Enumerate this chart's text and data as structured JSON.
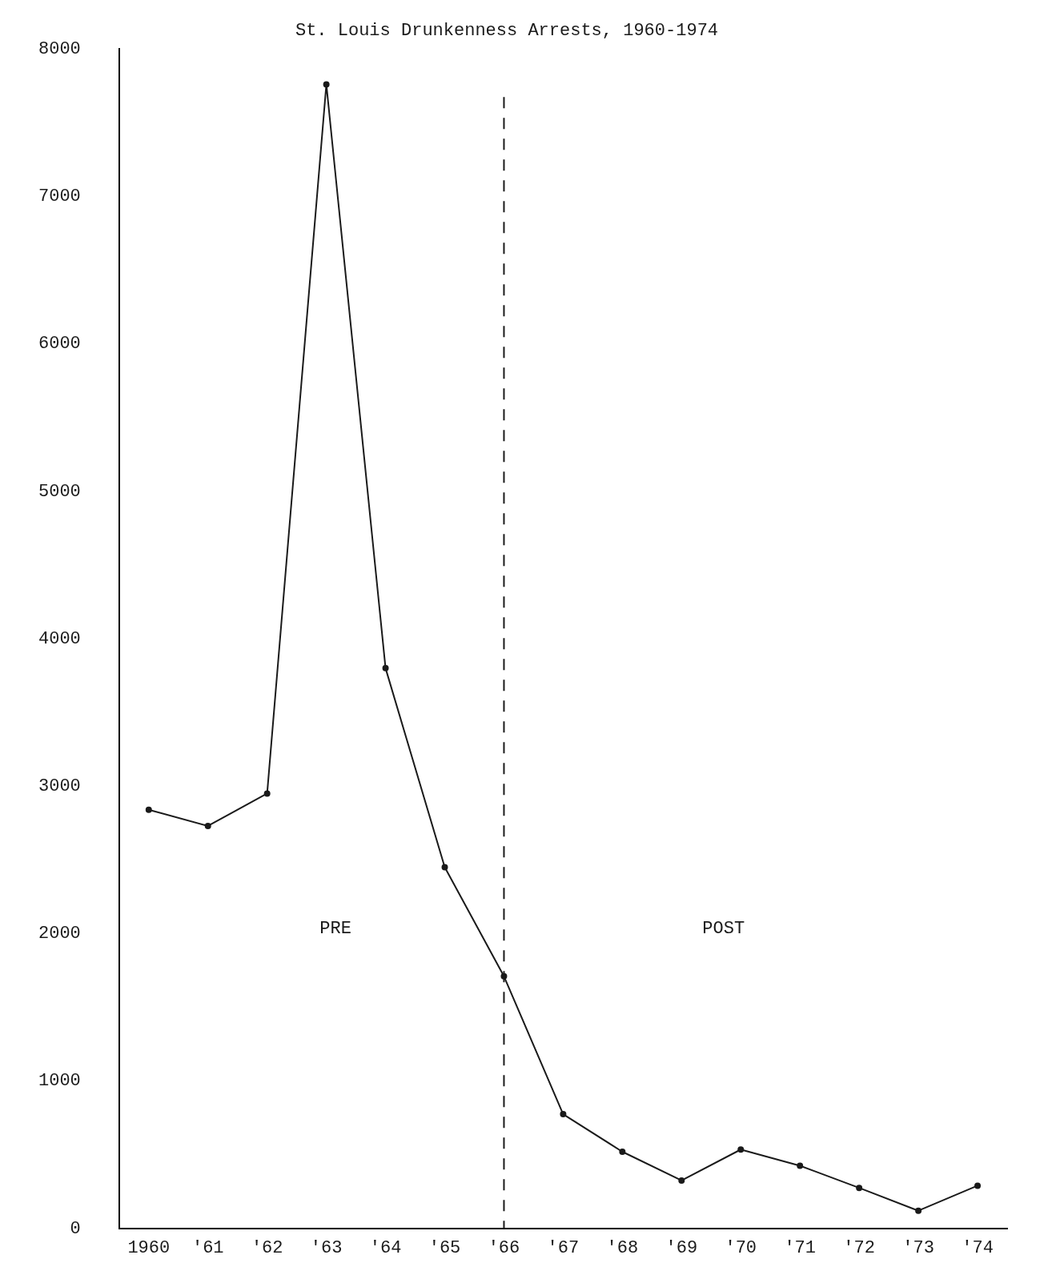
{
  "chart_data": {
    "type": "line",
    "title": "St. Louis Drunkenness Arrests, 1960-1974",
    "categories": [
      "1960",
      "'61",
      "'62",
      "'63",
      "'64",
      "'65",
      "'66",
      "'67",
      "'68",
      "'69",
      "'70",
      "'71",
      "'72",
      "'73",
      "'74"
    ],
    "values": [
      2840,
      2730,
      2950,
      7760,
      3800,
      2450,
      1710,
      775,
      520,
      325,
      535,
      425,
      275,
      120,
      290
    ],
    "color": "#1a1a1a",
    "ylim": [
      0,
      8000
    ],
    "yticks": [
      0,
      1000,
      2000,
      3000,
      4000,
      5000,
      6000,
      7000,
      8000
    ],
    "grid": false,
    "legend": false,
    "marker": "circle",
    "line_style": "solid",
    "ref_lines": [
      {
        "axis": "x",
        "value": "'66",
        "color": "#1a1a1a",
        "line_style": "dashed"
      }
    ],
    "annotations": [
      "PRE",
      "POST"
    ]
  }
}
